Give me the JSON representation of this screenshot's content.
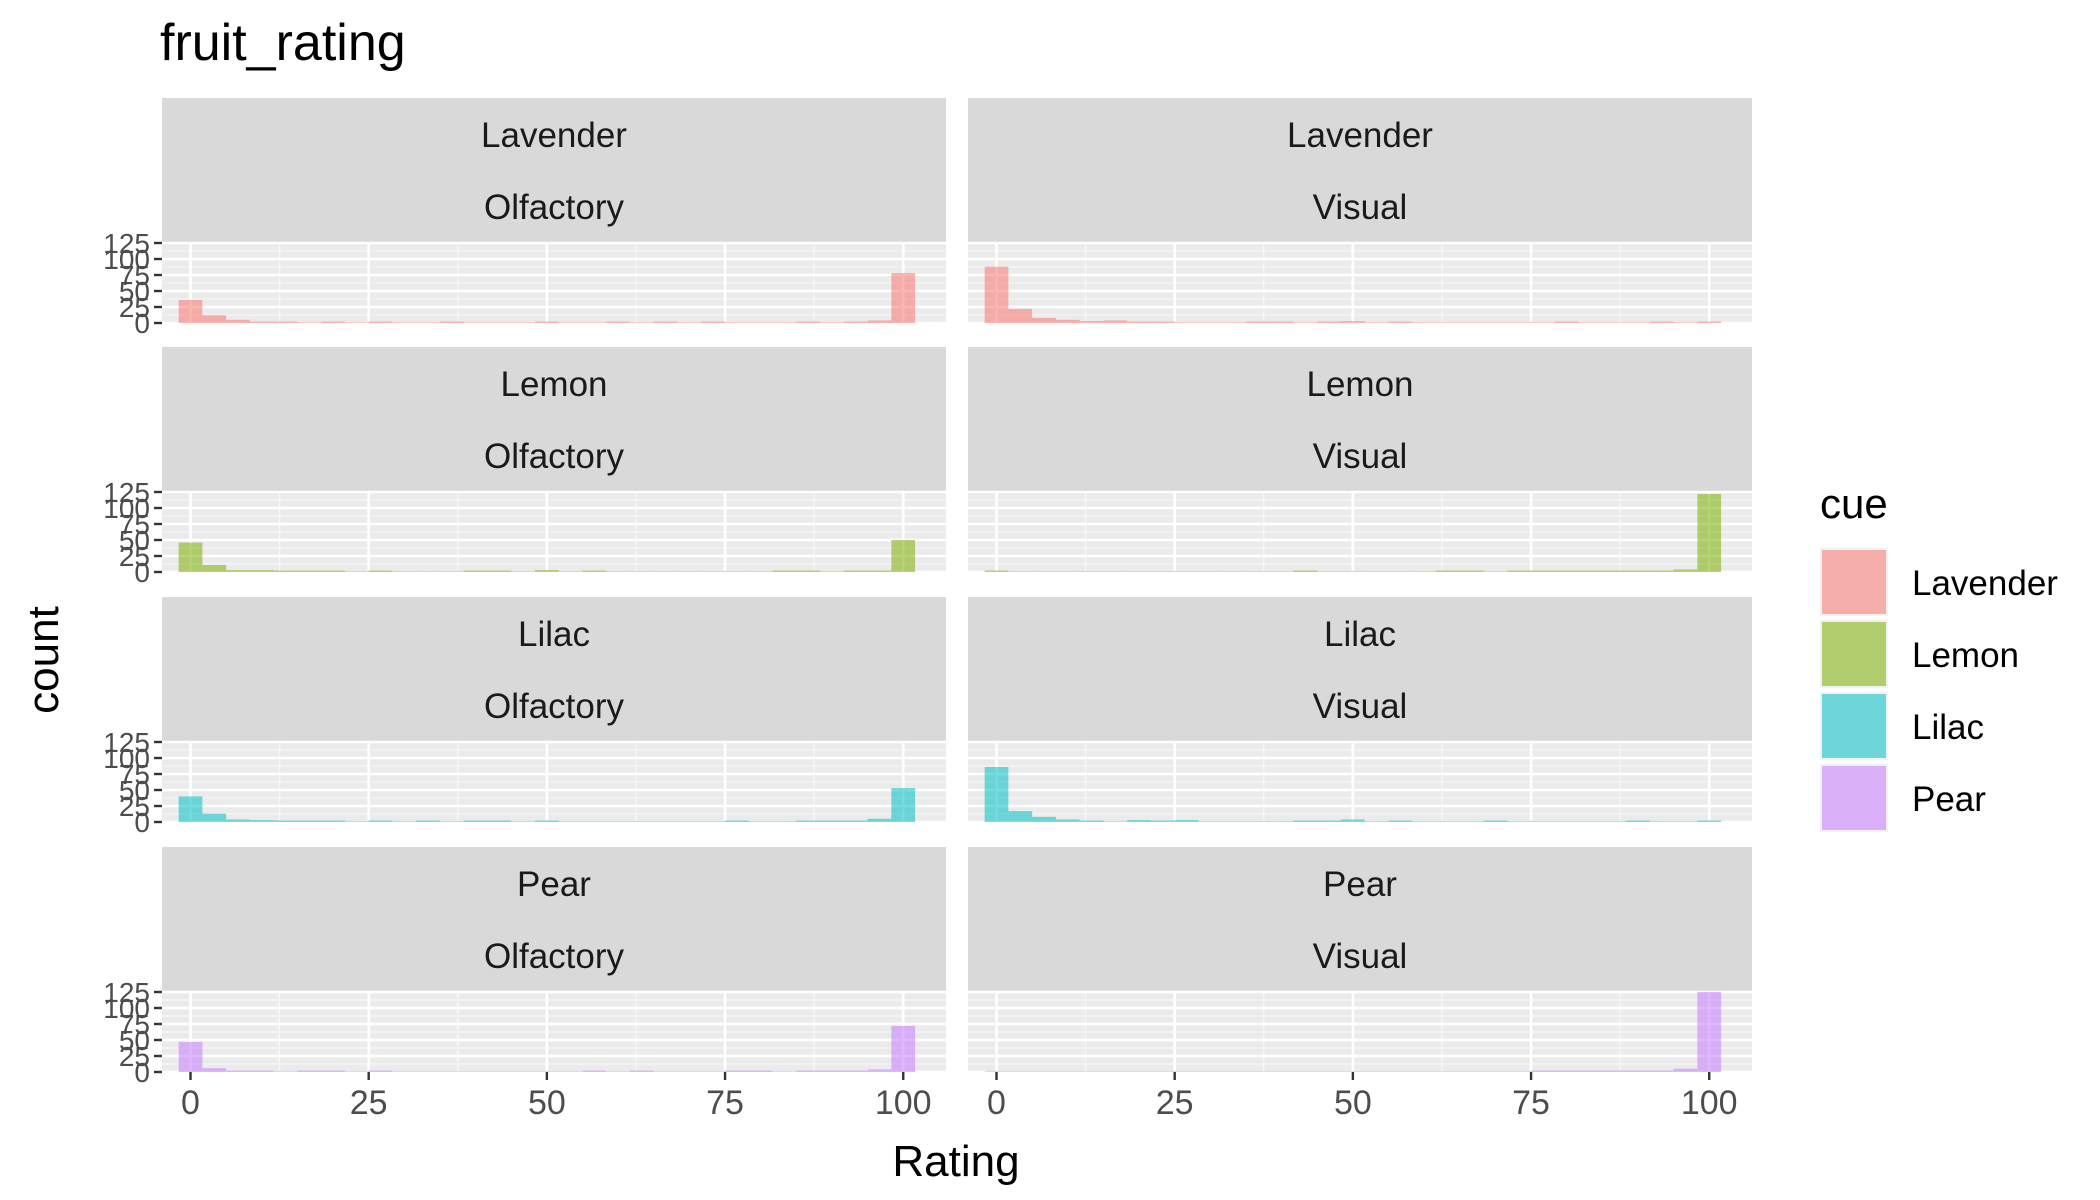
{
  "chart_data": {
    "type": "bar",
    "title": "fruit_rating",
    "xlabel": "Rating",
    "ylabel": "count",
    "xlim": [
      -4,
      106
    ],
    "ylim": [
      0,
      125
    ],
    "xticks": [
      "0",
      "25",
      "50",
      "75",
      "100"
    ],
    "yticks": [
      "0",
      "25",
      "50",
      "75",
      "100",
      "125"
    ],
    "bin_width": 3.333,
    "bin_centers": [
      0,
      3.333,
      6.667,
      10,
      13.333,
      16.667,
      20,
      23.333,
      26.667,
      30,
      33.333,
      36.667,
      40,
      43.333,
      46.667,
      50,
      53.333,
      56.667,
      60,
      63.333,
      66.667,
      70,
      73.333,
      76.667,
      80,
      83.333,
      86.667,
      90,
      93.333,
      96.667,
      100
    ],
    "legend": {
      "title": "cue",
      "position": "right",
      "items": [
        {
          "label": "Lavender",
          "color": "#F8766D"
        },
        {
          "label": "Lemon",
          "color": "#7CAE00"
        },
        {
          "label": "Lilac",
          "color": "#00BFC4"
        },
        {
          "label": "Pear",
          "color": "#C77CFF"
        }
      ]
    },
    "panels": [
      {
        "strip_top": "Lavender",
        "strip_bottom": "Olfactory",
        "cue": "Lavender",
        "values": [
          36,
          12,
          5,
          2,
          1,
          0,
          1,
          0,
          1,
          0,
          0,
          1,
          0,
          0,
          0,
          2,
          0,
          0,
          1,
          0,
          1,
          0,
          1,
          0,
          0,
          0,
          1,
          0,
          2,
          4,
          78
        ]
      },
      {
        "strip_top": "Lavender",
        "strip_bottom": "Visual",
        "cue": "Lavender",
        "values": [
          88,
          22,
          8,
          5,
          3,
          4,
          2,
          1,
          0,
          0,
          0,
          2,
          1,
          0,
          2,
          3,
          0,
          1,
          0,
          0,
          0,
          0,
          0,
          0,
          1,
          0,
          0,
          0,
          1,
          0,
          2
        ]
      },
      {
        "strip_top": "Lemon",
        "strip_bottom": "Olfactory",
        "cue": "Lemon",
        "values": [
          46,
          11,
          3,
          3,
          1,
          1,
          1,
          0,
          1,
          0,
          0,
          0,
          1,
          1,
          0,
          3,
          0,
          1,
          0,
          0,
          0,
          0,
          0,
          0,
          0,
          1,
          1,
          0,
          1,
          2,
          50
        ]
      },
      {
        "strip_top": "Lemon",
        "strip_bottom": "Visual",
        "cue": "Lemon",
        "values": [
          2,
          0,
          0,
          0,
          0,
          0,
          0,
          0,
          0,
          0,
          0,
          0,
          0,
          1,
          0,
          0,
          0,
          0,
          0,
          1,
          1,
          0,
          1,
          1,
          1,
          1,
          1,
          1,
          1,
          4,
          122
        ]
      },
      {
        "strip_top": "Lilac",
        "strip_bottom": "Olfactory",
        "cue": "Lilac",
        "values": [
          40,
          13,
          4,
          3,
          2,
          1,
          1,
          0,
          1,
          0,
          2,
          0,
          1,
          1,
          0,
          2,
          0,
          0,
          0,
          0,
          0,
          0,
          0,
          2,
          0,
          0,
          1,
          1,
          1,
          5,
          53
        ]
      },
      {
        "strip_top": "Lilac",
        "strip_bottom": "Visual",
        "cue": "Lilac",
        "values": [
          86,
          17,
          8,
          4,
          2,
          0,
          3,
          2,
          3,
          0,
          0,
          0,
          0,
          1,
          1,
          4,
          0,
          2,
          0,
          0,
          0,
          2,
          0,
          0,
          0,
          0,
          0,
          2,
          0,
          0,
          2
        ]
      },
      {
        "strip_top": "Pear",
        "strip_bottom": "Olfactory",
        "cue": "Pear",
        "values": [
          47,
          6,
          2,
          1,
          0,
          1,
          1,
          0,
          1,
          0,
          0,
          0,
          0,
          0,
          0,
          0,
          0,
          1,
          0,
          1,
          0,
          0,
          0,
          1,
          1,
          0,
          1,
          1,
          2,
          4,
          72
        ]
      },
      {
        "strip_top": "Pear",
        "strip_bottom": "Visual",
        "cue": "Pear",
        "values": [
          0,
          0,
          0,
          0,
          0,
          0,
          0,
          0,
          0,
          0,
          0,
          0,
          0,
          0,
          0,
          0,
          0,
          0,
          0,
          0,
          0,
          0,
          0,
          1,
          1,
          1,
          1,
          2,
          1,
          5,
          128
        ]
      }
    ]
  }
}
